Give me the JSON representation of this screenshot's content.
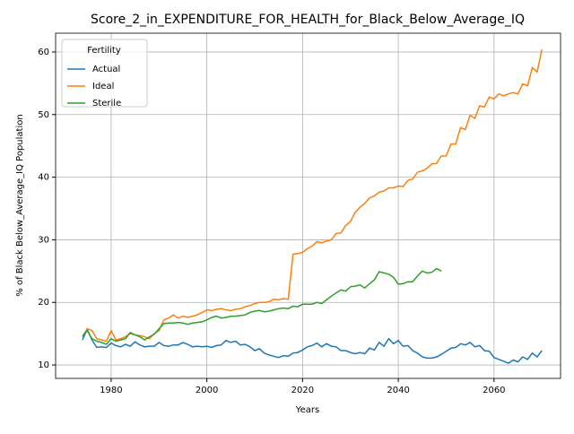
{
  "chart_data": {
    "type": "line",
    "title": "Score_2_in_EXPENDITURE_FOR_HEALTH_for_Black_Below_Average_IQ",
    "x_label": "Years",
    "y_label": "% of Black Below_Average_IQ Population",
    "legend_title": "Fertility",
    "legend_position": "upper-left",
    "grid": true,
    "xlim": [
      1968.4,
      2073.9
    ],
    "ylim": [
      7.86,
      63
    ],
    "xticks": [
      1980,
      2000,
      2020,
      2040,
      2060
    ],
    "yticks": [
      10,
      20,
      30,
      40,
      50,
      60
    ],
    "x": [
      1974,
      1975,
      1976,
      1977,
      1978,
      1979,
      1980,
      1981,
      1982,
      1983,
      1984,
      1985,
      1986,
      1987,
      1988,
      1989,
      1990,
      1991,
      1992,
      1993,
      1994,
      1995,
      1996,
      1997,
      1998,
      1999,
      2000,
      2001,
      2002,
      2003,
      2004,
      2005,
      2006,
      2007,
      2008,
      2009,
      2010,
      2011,
      2012,
      2013,
      2014,
      2015,
      2016,
      2017,
      2018,
      2019,
      2020,
      2021,
      2022,
      2023,
      2024,
      2025,
      2026,
      2027,
      2028,
      2029,
      2030,
      2031,
      2032,
      2033,
      2034,
      2035,
      2036,
      2037,
      2038,
      2039,
      2040,
      2041,
      2042,
      2043,
      2044,
      2045,
      2046,
      2047,
      2048,
      2049,
      2050,
      2051,
      2052,
      2053,
      2054,
      2055,
      2056,
      2057,
      2058,
      2059,
      2060,
      2061,
      2062,
      2063,
      2064,
      2065,
      2066,
      2067,
      2068,
      2069,
      2070
    ],
    "series": [
      {
        "name": "Actual",
        "color": "#1f77b4",
        "values": [
          14.0,
          15.7,
          14.0,
          12.8,
          12.9,
          12.8,
          13.5,
          13.1,
          12.9,
          13.3,
          13.0,
          13.7,
          13.2,
          12.9,
          13.0,
          13.0,
          13.6,
          13.1,
          13.0,
          13.2,
          13.2,
          13.6,
          13.3,
          12.9,
          13.0,
          12.9,
          13.0,
          12.8,
          13.1,
          13.2,
          13.9,
          13.6,
          13.8,
          13.2,
          13.3,
          12.9,
          12.3,
          12.6,
          11.9,
          11.6,
          11.4,
          11.2,
          11.5,
          11.4,
          11.9,
          12.0,
          12.4,
          12.9,
          13.1,
          13.5,
          12.9,
          13.4,
          13.0,
          12.9,
          12.3,
          12.3,
          12.0,
          11.8,
          12.0,
          11.8,
          12.7,
          12.4,
          13.6,
          13.0,
          14.2,
          13.4,
          13.9,
          13.0,
          13.1,
          12.3,
          11.9,
          11.3,
          11.1,
          11.1,
          11.3,
          11.7,
          12.2,
          12.7,
          12.8,
          13.4,
          13.2,
          13.6,
          12.9,
          13.1,
          12.3,
          12.2,
          11.2,
          10.9,
          10.6,
          10.3,
          10.8,
          10.5,
          11.3,
          10.9,
          11.9,
          11.3,
          12.3
        ]
      },
      {
        "name": "Ideal",
        "color": "#ff7f0e",
        "values": [
          14.5,
          15.8,
          15.5,
          14.2,
          14.0,
          13.8,
          15.5,
          14.0,
          14.2,
          14.5,
          15.0,
          14.8,
          14.7,
          14.5,
          14.2,
          15.0,
          15.5,
          17.2,
          17.5,
          18.0,
          17.5,
          17.8,
          17.6,
          17.8,
          18.0,
          18.4,
          18.8,
          18.7,
          18.9,
          19.0,
          18.8,
          18.7,
          18.9,
          19.0,
          19.3,
          19.5,
          19.8,
          20.0,
          20.0,
          20.1,
          20.5,
          20.4,
          20.6,
          20.5,
          27.7,
          27.8,
          28.0,
          28.6,
          29.0,
          29.7,
          29.5,
          29.8,
          30.0,
          31.0,
          31.1,
          32.3,
          32.9,
          34.4,
          35.2,
          35.8,
          36.7,
          37.0,
          37.6,
          37.8,
          38.3,
          38.3,
          38.6,
          38.5,
          39.5,
          39.7,
          40.8,
          41.0,
          41.4,
          42.1,
          42.2,
          43.4,
          43.4,
          45.3,
          45.3,
          47.9,
          47.6,
          49.9,
          49.4,
          51.4,
          51.2,
          52.8,
          52.5,
          53.3,
          53.0,
          53.3,
          53.5,
          53.3,
          54.9,
          54.6,
          57.5,
          56.8,
          60.4
        ]
      },
      {
        "name": "Sterile",
        "color": "#2ca02c",
        "values": [
          14.6,
          15.5,
          14.2,
          13.8,
          13.6,
          13.3,
          14.2,
          13.8,
          14.0,
          14.2,
          15.2,
          14.8,
          14.5,
          14.0,
          14.5,
          14.9,
          15.8,
          16.6,
          16.7,
          16.7,
          16.8,
          16.7,
          16.5,
          16.7,
          16.8,
          16.9,
          17.2,
          17.6,
          17.8,
          17.5,
          17.6,
          17.8,
          17.8,
          17.9,
          18.0,
          18.4,
          18.6,
          18.7,
          18.5,
          18.6,
          18.8,
          19.0,
          19.1,
          19.0,
          19.4,
          19.3,
          19.7,
          19.7,
          19.7,
          20.0,
          19.8,
          20.4,
          21.0,
          21.5,
          22.0,
          21.8,
          22.5,
          22.6,
          22.8,
          22.3,
          23.0,
          23.6,
          24.9,
          24.7,
          24.5,
          24.0,
          22.9,
          23.0,
          23.3,
          23.3,
          24.2,
          25.0,
          24.7,
          24.8,
          25.4,
          25.0,
          null,
          null,
          null,
          null,
          null,
          null,
          null,
          null,
          null,
          null,
          null,
          null,
          null,
          null,
          null,
          null,
          null,
          null,
          null,
          null,
          null
        ]
      }
    ]
  }
}
